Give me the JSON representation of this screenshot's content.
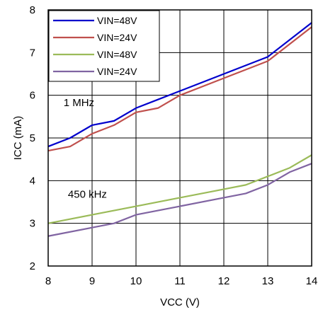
{
  "chart_data": {
    "type": "line",
    "title": "",
    "xlabel": "VCC (V)",
    "ylabel": "ICC (mA)",
    "xlim": [
      8,
      14
    ],
    "ylim": [
      2,
      8
    ],
    "xticks": [
      "8",
      "9",
      "10",
      "11",
      "12",
      "13",
      "14"
    ],
    "yticks": [
      "2",
      "3",
      "4",
      "5",
      "6",
      "7",
      "8"
    ],
    "grid": true,
    "legend_position": "top-left",
    "annotations": [
      {
        "text": "1 MHz",
        "x": 8.35,
        "y": 5.75
      },
      {
        "text": "450 kHz",
        "x": 8.45,
        "y": 3.6
      }
    ],
    "series": [
      {
        "name": "VIN=48V",
        "color": "#0000cc",
        "points": [
          [
            8,
            4.8
          ],
          [
            8.5,
            5.0
          ],
          [
            9,
            5.3
          ],
          [
            9.5,
            5.4
          ],
          [
            10,
            5.7
          ],
          [
            10.5,
            5.9
          ],
          [
            11,
            6.1
          ],
          [
            12,
            6.5
          ],
          [
            13,
            6.9
          ],
          [
            14,
            7.7
          ]
        ]
      },
      {
        "name": "VIN=24V",
        "color": "#c0504d",
        "points": [
          [
            8,
            4.7
          ],
          [
            8.5,
            4.8
          ],
          [
            9,
            5.1
          ],
          [
            9.5,
            5.3
          ],
          [
            10,
            5.6
          ],
          [
            10.5,
            5.7
          ],
          [
            11,
            6.0
          ],
          [
            12,
            6.4
          ],
          [
            13,
            6.8
          ],
          [
            14,
            7.6
          ]
        ]
      },
      {
        "name": "VIN=48V",
        "color": "#9bbb59",
        "points": [
          [
            8,
            3.0
          ],
          [
            9,
            3.2
          ],
          [
            10,
            3.4
          ],
          [
            11,
            3.6
          ],
          [
            12,
            3.8
          ],
          [
            12.5,
            3.9
          ],
          [
            13,
            4.1
          ],
          [
            13.5,
            4.3
          ],
          [
            14,
            4.6
          ]
        ]
      },
      {
        "name": "VIN=24V",
        "color": "#8064a2",
        "points": [
          [
            8,
            2.7
          ],
          [
            9,
            2.9
          ],
          [
            9.5,
            3.0
          ],
          [
            10,
            3.2
          ],
          [
            11,
            3.4
          ],
          [
            12,
            3.6
          ],
          [
            12.5,
            3.7
          ],
          [
            13,
            3.9
          ],
          [
            13.5,
            4.2
          ],
          [
            14,
            4.4
          ]
        ]
      }
    ]
  }
}
